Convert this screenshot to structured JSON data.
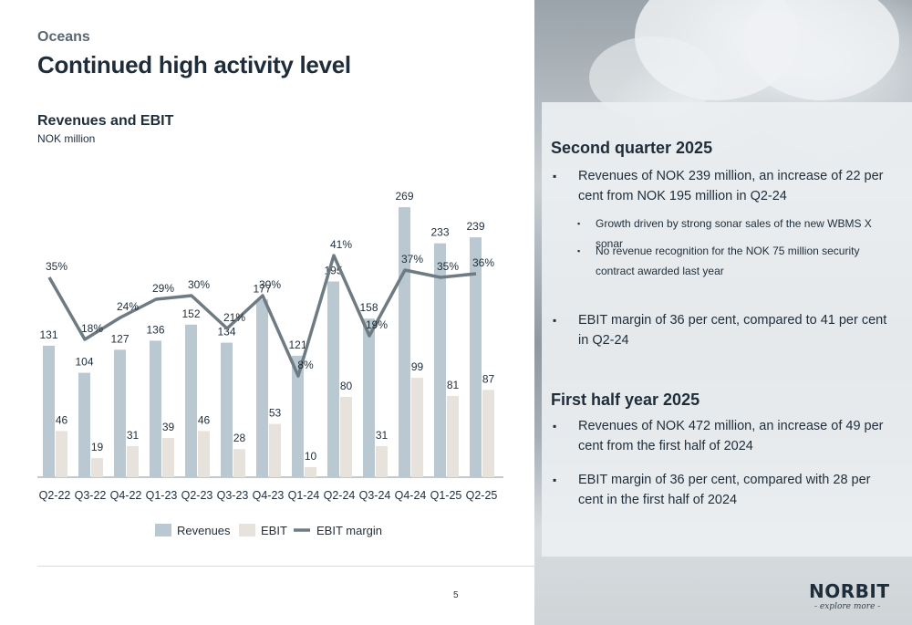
{
  "section": "Oceans",
  "title": "Continued high activity level",
  "page_number": "5",
  "chart_data": {
    "type": "bar",
    "title": "Revenues and EBIT",
    "subtitle": "NOK million",
    "categories": [
      "Q2-22",
      "Q3-22",
      "Q4-22",
      "Q1-23",
      "Q2-23",
      "Q3-23",
      "Q4-23",
      "Q1-24",
      "Q2-24",
      "Q3-24",
      "Q4-24",
      "Q1-25",
      "Q2-25"
    ],
    "series": [
      {
        "name": "Revenues",
        "values": [
          131,
          104,
          127,
          136,
          152,
          134,
          177,
          121,
          195,
          158,
          269,
          233,
          239
        ],
        "color": "#b9c8d1"
      },
      {
        "name": "EBIT",
        "values": [
          46,
          19,
          31,
          39,
          46,
          28,
          53,
          10,
          80,
          31,
          99,
          81,
          87
        ],
        "color": "#e8e2dc"
      }
    ],
    "line": {
      "name": "EBIT margin",
      "values": [
        35,
        18,
        24,
        29,
        30,
        21,
        30,
        8,
        41,
        19,
        37,
        35,
        36
      ],
      "labels": [
        "35%",
        "18%",
        "24%",
        "29%",
        "30%",
        "21%",
        "30%",
        "8%",
        "41%",
        "19%",
        "37%",
        "35%",
        "36%"
      ],
      "color": "#6f7b82"
    },
    "legend": [
      "Revenues",
      "EBIT",
      "EBIT margin"
    ],
    "legend_position": "bottom"
  },
  "panel": {
    "heading1": "Second quarter 2025",
    "bullet1": "Revenues of NOK 239 million, an increase of 22 per cent from NOK 195 million in Q2-24",
    "sub1": "Growth driven by strong sonar sales of the new WBMS X sonar",
    "sub2": "No revenue recognition for the NOK 75 million security contract awarded last year",
    "bullet2": "EBIT margin of 36 per cent, compared to 41 per cent in Q2-24",
    "heading2": "First half year 2025",
    "bullet3": "Revenues of NOK 472 million, an increase of 49 per cent from the first half of 2024",
    "bullet4": "EBIT margin of 36 per cent, compared with 28 per cent in the first half of 2024"
  },
  "logo": "NORBIT",
  "tagline": "- explore more -"
}
